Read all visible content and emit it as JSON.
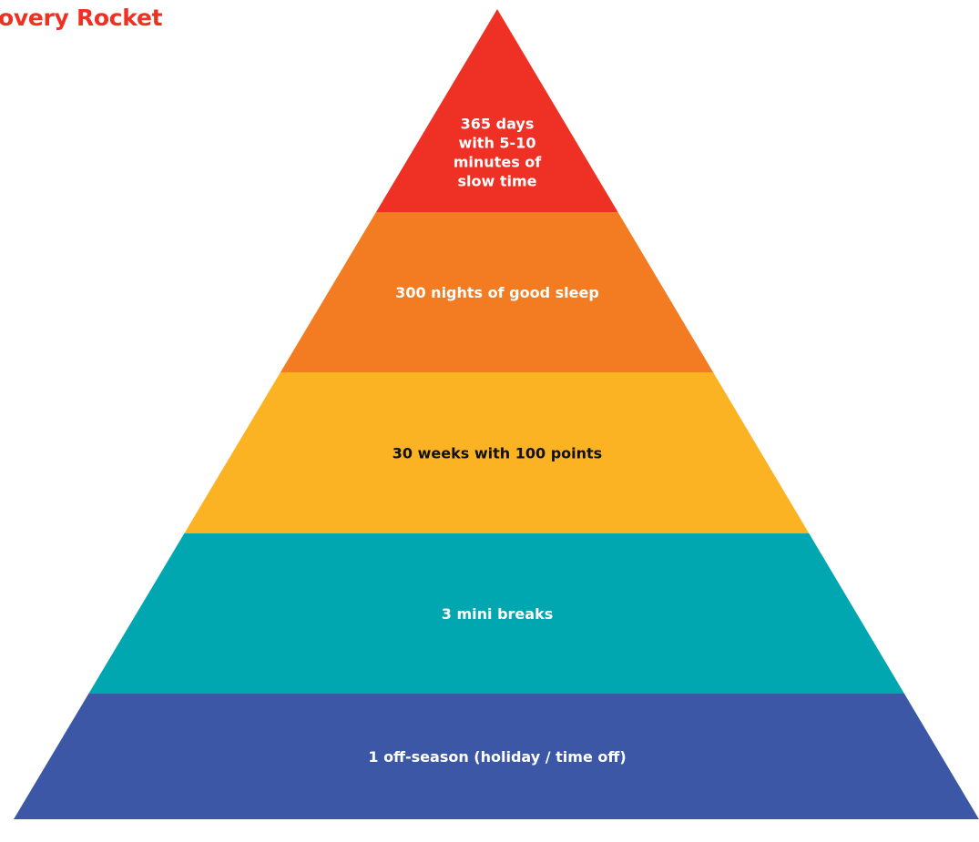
{
  "title": "overy Rocket",
  "title_color": "#ee3124",
  "tiers": [
    {
      "lines": [
        "365 days",
        "with 5-10",
        "minutes of",
        "slow time"
      ],
      "fill": "#ee3124",
      "text_color": "#ffffff"
    },
    {
      "lines": [
        "300 nights of good sleep"
      ],
      "fill": "#f37b21",
      "text_color": "#ffffff"
    },
    {
      "lines": [
        "30 weeks with 100 points"
      ],
      "fill": "#fbb324",
      "text_color": "#111111"
    },
    {
      "lines": [
        "3 mini breaks"
      ],
      "fill": "#00a6b0",
      "text_color": "#ffffff"
    },
    {
      "lines": [
        "1 off-season (holiday / time off)"
      ],
      "fill": "#3b57a6",
      "text_color": "#ffffff"
    }
  ]
}
